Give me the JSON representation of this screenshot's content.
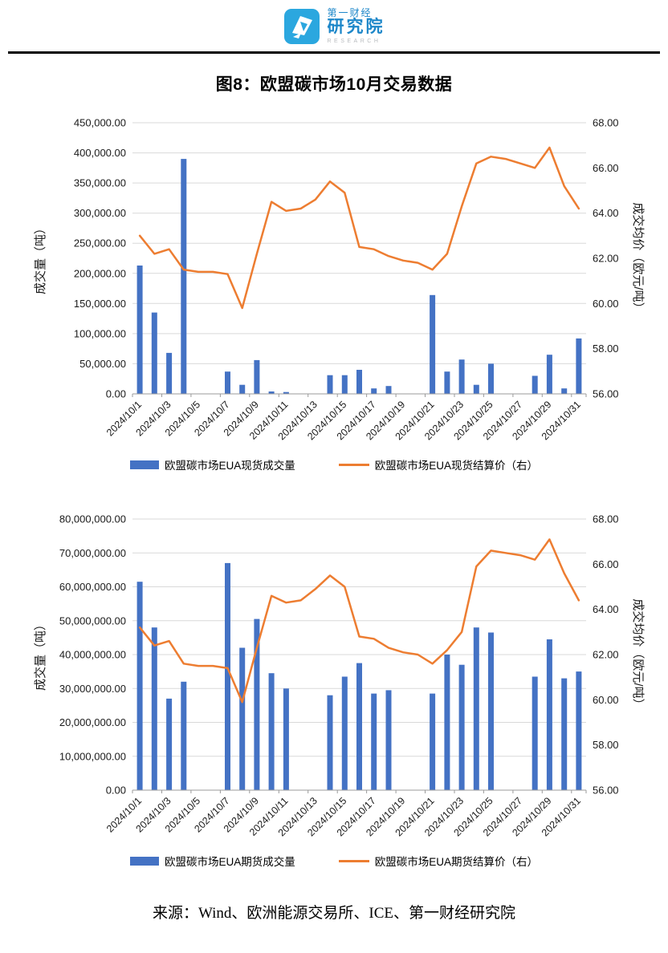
{
  "header": {
    "logo": {
      "line1": "第一财经",
      "line2": "研究院",
      "line3": "RESEARCH"
    }
  },
  "source": "来源：Wind、欧洲能源交易所、ICE、第一财经研究院",
  "colors": {
    "bar": "#4472C4",
    "line": "#ED7D31",
    "grid": "#D9D9D9",
    "axis": "#9b9b9b",
    "text": "#1a1a1a",
    "brand_blue": "#2BA7DF",
    "brand_text_blue": "#1d87c9"
  },
  "chart_data": [
    {
      "type": "bar",
      "title": "图8：欧盟碳市场10月交易数据",
      "x": [
        "2024/10/1",
        "2024/10/2",
        "2024/10/3",
        "2024/10/4",
        "2024/10/5",
        "2024/10/6",
        "2024/10/7",
        "2024/10/8",
        "2024/10/9",
        "2024/10/10",
        "2024/10/11",
        "2024/10/12",
        "2024/10/13",
        "2024/10/14",
        "2024/10/15",
        "2024/10/16",
        "2024/10/17",
        "2024/10/18",
        "2024/10/19",
        "2024/10/20",
        "2024/10/21",
        "2024/10/22",
        "2024/10/23",
        "2024/10/24",
        "2024/10/25",
        "2024/10/26",
        "2024/10/27",
        "2024/10/28",
        "2024/10/29",
        "2024/10/30",
        "2024/10/31"
      ],
      "xtick_every": 2,
      "ylabel_left": "成交量（吨）",
      "ylabel_right": "成交均价（欧元/吨）",
      "ylim_left": [
        0,
        450000
      ],
      "ystep_left": 50000,
      "ylim_right": [
        56,
        68
      ],
      "ystep_right": 2,
      "grid": true,
      "legend_position": "bottom",
      "series": [
        {
          "name": "欧盟碳市场EUA现货成交量",
          "type": "bar",
          "axis": "left",
          "values": [
            213000,
            135000,
            68000,
            390000,
            0,
            0,
            37000,
            15000,
            56000,
            4000,
            3000,
            0,
            0,
            31000,
            31000,
            40000,
            9000,
            13000,
            0,
            0,
            164000,
            37000,
            57000,
            15000,
            50000,
            0,
            0,
            30000,
            65000,
            9000,
            92000
          ]
        },
        {
          "name": "欧盟碳市场EUA现货结算价（右）",
          "type": "line",
          "axis": "right",
          "values": [
            63.0,
            62.2,
            62.4,
            61.5,
            61.4,
            61.4,
            61.3,
            59.8,
            62.2,
            64.5,
            64.1,
            64.2,
            64.6,
            65.4,
            64.9,
            62.5,
            62.4,
            62.1,
            61.9,
            61.8,
            61.5,
            62.2,
            64.3,
            66.2,
            66.5,
            66.4,
            66.2,
            66.0,
            66.9,
            65.2,
            64.2
          ]
        }
      ]
    },
    {
      "type": "bar",
      "title": "",
      "x": [
        "2024/10/1",
        "2024/10/2",
        "2024/10/3",
        "2024/10/4",
        "2024/10/5",
        "2024/10/6",
        "2024/10/7",
        "2024/10/8",
        "2024/10/9",
        "2024/10/10",
        "2024/10/11",
        "2024/10/12",
        "2024/10/13",
        "2024/10/14",
        "2024/10/15",
        "2024/10/16",
        "2024/10/17",
        "2024/10/18",
        "2024/10/19",
        "2024/10/20",
        "2024/10/21",
        "2024/10/22",
        "2024/10/23",
        "2024/10/24",
        "2024/10/25",
        "2024/10/26",
        "2024/10/27",
        "2024/10/28",
        "2024/10/29",
        "2024/10/30",
        "2024/10/31"
      ],
      "xtick_every": 2,
      "ylabel_left": "成交量（吨）",
      "ylabel_right": "成交均价（欧元/吨）",
      "ylim_left": [
        0,
        80000000
      ],
      "ystep_left": 10000000,
      "ylim_right": [
        56,
        68
      ],
      "ystep_right": 2,
      "grid": true,
      "legend_position": "bottom",
      "series": [
        {
          "name": "欧盟碳市场EUA期货成交量",
          "type": "bar",
          "axis": "left",
          "values": [
            61500000,
            48000000,
            27000000,
            32000000,
            0,
            0,
            67000000,
            42000000,
            50500000,
            34500000,
            30000000,
            0,
            0,
            28000000,
            33500000,
            37500000,
            28500000,
            29500000,
            0,
            0,
            28500000,
            40000000,
            37000000,
            48000000,
            46500000,
            0,
            0,
            33500000,
            44500000,
            33000000,
            35000000
          ]
        },
        {
          "name": "欧盟碳市场EUA期货结算价（右）",
          "type": "line",
          "axis": "right",
          "values": [
            63.2,
            62.4,
            62.6,
            61.6,
            61.5,
            61.5,
            61.4,
            59.9,
            62.3,
            64.6,
            64.3,
            64.4,
            64.9,
            65.5,
            65.0,
            62.8,
            62.7,
            62.3,
            62.1,
            62.0,
            61.6,
            62.2,
            63.0,
            65.9,
            66.6,
            66.5,
            66.4,
            66.2,
            67.1,
            65.6,
            64.4
          ]
        }
      ]
    }
  ]
}
